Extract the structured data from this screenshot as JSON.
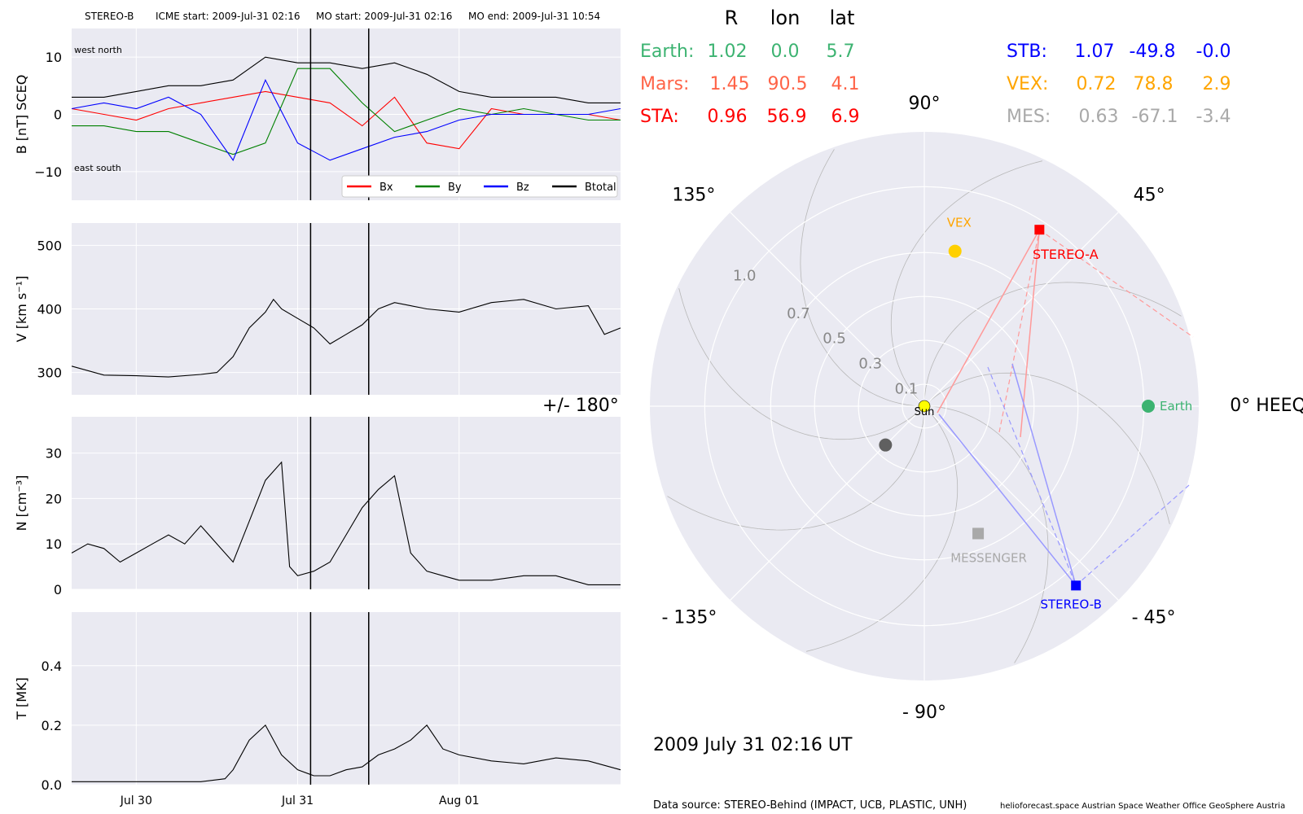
{
  "header": {
    "spacecraft": "STEREO-B",
    "icme_start": "ICME start: 2009-Jul-31 02:16",
    "mo_start": "MO start: 2009-Jul-31 02:16",
    "mo_end": "MO end: 2009-Jul-31 10:54"
  },
  "colors": {
    "panel_bg": "#eaeaf2",
    "bx": "#ff0000",
    "by": "#008000",
    "bz": "#0000ff",
    "btotal": "#000000",
    "earth": "#3cb371",
    "mars": "#ff6347",
    "sta": "#ff0000",
    "stb": "#0000ff",
    "vex": "#ffa500",
    "mes": "#a9a9a9",
    "sun": "#ffff00"
  },
  "chart_data": [
    {
      "type": "line",
      "name": "magnetic-field",
      "ylabel": "B [nT] SCEQ",
      "ylim": [
        -15,
        15
      ],
      "yticks": [
        "10",
        "0",
        "−10"
      ],
      "ytick_values": [
        10,
        0,
        -10
      ],
      "corner_labels": {
        "top": "west    north",
        "bottom": "east    south"
      },
      "legend": [
        "Bx",
        "By",
        "Bz",
        "Btotal"
      ],
      "legend_placement": "bottom-right",
      "series": [
        {
          "name": "Bx",
          "x": [
            0,
            0.2,
            0.4,
            0.6,
            0.8,
            1.0,
            1.2,
            1.4,
            1.6,
            1.8,
            2.0,
            2.2,
            2.4,
            2.6,
            2.8,
            3.0,
            3.2,
            3.4
          ],
          "values": [
            1,
            0,
            -1,
            1,
            2,
            3,
            4,
            3,
            2,
            -2,
            3,
            -5,
            -6,
            1,
            0,
            0,
            0,
            -1
          ]
        },
        {
          "name": "By",
          "x": [
            0,
            0.2,
            0.4,
            0.6,
            0.8,
            1.0,
            1.2,
            1.4,
            1.6,
            1.8,
            2.0,
            2.2,
            2.4,
            2.6,
            2.8,
            3.0,
            3.2,
            3.4
          ],
          "values": [
            -2,
            -2,
            -3,
            -3,
            -5,
            -7,
            -5,
            8,
            8,
            2,
            -3,
            -1,
            1,
            0,
            1,
            0,
            -1,
            -1
          ]
        },
        {
          "name": "Bz",
          "x": [
            0,
            0.2,
            0.4,
            0.6,
            0.8,
            1.0,
            1.2,
            1.4,
            1.6,
            1.8,
            2.0,
            2.2,
            2.4,
            2.6,
            2.8,
            3.0,
            3.2,
            3.4
          ],
          "values": [
            1,
            2,
            1,
            3,
            0,
            -8,
            6,
            -5,
            -8,
            -6,
            -4,
            -3,
            -1,
            0,
            0,
            0,
            0,
            1
          ]
        },
        {
          "name": "Btotal",
          "x": [
            0,
            0.2,
            0.4,
            0.6,
            0.8,
            1.0,
            1.2,
            1.4,
            1.6,
            1.8,
            2.0,
            2.2,
            2.4,
            2.6,
            2.8,
            3.0,
            3.2,
            3.4
          ],
          "values": [
            3,
            3,
            4,
            5,
            5,
            6,
            10,
            9,
            9,
            8,
            9,
            7,
            4,
            3,
            3,
            3,
            2,
            2
          ]
        }
      ]
    },
    {
      "type": "line",
      "name": "speed",
      "ylabel": "V [km s⁻¹]",
      "ylim": [
        265,
        535
      ],
      "yticks": [
        "500",
        "400",
        "300"
      ],
      "ytick_values": [
        500,
        400,
        300
      ],
      "series": [
        {
          "name": "V",
          "x": [
            0,
            0.2,
            0.4,
            0.6,
            0.8,
            0.9,
            1.0,
            1.1,
            1.2,
            1.25,
            1.3,
            1.4,
            1.5,
            1.6,
            1.7,
            1.8,
            1.9,
            2.0,
            2.1,
            2.2,
            2.4,
            2.6,
            2.8,
            3.0,
            3.2,
            3.3,
            3.4
          ],
          "values": [
            310,
            296,
            295,
            293,
            297,
            300,
            325,
            370,
            395,
            415,
            400,
            385,
            370,
            345,
            360,
            375,
            400,
            410,
            405,
            400,
            395,
            410,
            415,
            400,
            405,
            360,
            370
          ]
        }
      ]
    },
    {
      "type": "line",
      "name": "density",
      "ylabel": "N [cm⁻³]",
      "ylim": [
        0,
        38
      ],
      "yticks": [
        "30",
        "20",
        "10",
        "0"
      ],
      "ytick_values": [
        30,
        20,
        10,
        0
      ],
      "series": [
        {
          "name": "N",
          "x": [
            0,
            0.1,
            0.2,
            0.3,
            0.4,
            0.5,
            0.6,
            0.7,
            0.8,
            0.9,
            1.0,
            1.1,
            1.2,
            1.3,
            1.35,
            1.4,
            1.5,
            1.6,
            1.7,
            1.8,
            1.9,
            2.0,
            2.1,
            2.2,
            2.3,
            2.4,
            2.6,
            2.8,
            3.0,
            3.2,
            3.4
          ],
          "values": [
            8,
            10,
            9,
            6,
            8,
            10,
            12,
            10,
            14,
            10,
            6,
            15,
            24,
            28,
            5,
            3,
            4,
            6,
            12,
            18,
            22,
            25,
            8,
            4,
            3,
            2,
            2,
            3,
            3,
            1,
            1
          ]
        }
      ]
    },
    {
      "type": "line",
      "name": "temperature",
      "ylabel": "T [MK]",
      "ylim": [
        0,
        0.58
      ],
      "yticks": [
        "0.4",
        "0.2",
        "0.0"
      ],
      "ytick_values": [
        0.4,
        0.2,
        0.0
      ],
      "x_tick_labels": [
        "Jul 30",
        "Jul 31",
        "Aug 01"
      ],
      "x_tick_values": [
        0.4,
        1.4,
        2.4
      ],
      "series": [
        {
          "name": "T",
          "x": [
            0,
            0.2,
            0.4,
            0.6,
            0.8,
            0.95,
            1.0,
            1.1,
            1.2,
            1.3,
            1.4,
            1.5,
            1.6,
            1.7,
            1.8,
            1.9,
            2.0,
            2.1,
            2.2,
            2.3,
            2.4,
            2.6,
            2.8,
            3.0,
            3.2,
            3.4
          ],
          "values": [
            0.01,
            0.01,
            0.01,
            0.01,
            0.01,
            0.02,
            0.05,
            0.15,
            0.2,
            0.1,
            0.05,
            0.03,
            0.03,
            0.05,
            0.06,
            0.1,
            0.12,
            0.15,
            0.2,
            0.12,
            0.1,
            0.08,
            0.07,
            0.09,
            0.08,
            0.05
          ]
        }
      ]
    }
  ],
  "event_markers_x": [
    1.48,
    1.84
  ],
  "polar": {
    "type": "scatter",
    "frame": "0° HEEQ",
    "radial_ticks": [
      "0.1",
      "0.3",
      "0.5",
      "0.7",
      "1.0"
    ],
    "radial_tick_values": [
      0.1,
      0.3,
      0.5,
      0.7,
      1.0
    ],
    "angle_labels": {
      "a0": "0° HEEQ",
      "a45": "45°",
      "a90": "90°",
      "a135": "135°",
      "a180": "+/- 180°",
      "am135": "- 135°",
      "am90": "- 90°",
      "am45": "- 45°"
    },
    "bodies": [
      {
        "key": "sun",
        "label": "Sun",
        "r": 0,
        "lon": 0
      },
      {
        "key": "earth",
        "label": "Earth",
        "r": 1.02,
        "lon": 0.0
      },
      {
        "key": "vex",
        "label": "VEX",
        "r": 0.72,
        "lon": 78.8
      },
      {
        "key": "sta",
        "label": "STEREO-A",
        "r": 0.96,
        "lon": 56.9
      },
      {
        "key": "stb",
        "label": "STEREO-B",
        "r": 1.07,
        "lon": -49.8
      },
      {
        "key": "mes",
        "label": "MESSENGER",
        "r": 0.63,
        "lon": -67.1
      },
      {
        "key": "mercury_marker",
        "label": "",
        "r": 0.25,
        "lon": -135
      }
    ]
  },
  "table": {
    "headers": [
      "R",
      "lon",
      "lat"
    ],
    "left_rows": [
      {
        "name": "Earth:",
        "r": "1.02",
        "lon": "0.0",
        "lat": "5.7"
      },
      {
        "name": "Mars:",
        "r": "1.45",
        "lon": "90.5",
        "lat": "4.1"
      },
      {
        "name": "STA:",
        "r": "0.96",
        "lon": "56.9",
        "lat": "6.9"
      }
    ],
    "right_rows": [
      {
        "name": "STB:",
        "r": "1.07",
        "lon": "-49.8",
        "lat": "-0.0"
      },
      {
        "name": "VEX:",
        "r": "0.72",
        "lon": "78.8",
        "lat": "2.9"
      },
      {
        "name": "MES:",
        "r": "0.63",
        "lon": "-67.1",
        "lat": "-3.4"
      }
    ]
  },
  "footer": {
    "datetime": "2009 July 31  02:16 UT",
    "source": "Data source: STEREO-Behind (IMPACT, UCB, PLASTIC, UNH)",
    "credits": "helioforecast.space   Austrian Space Weather Office   GeoSphere Austria"
  }
}
